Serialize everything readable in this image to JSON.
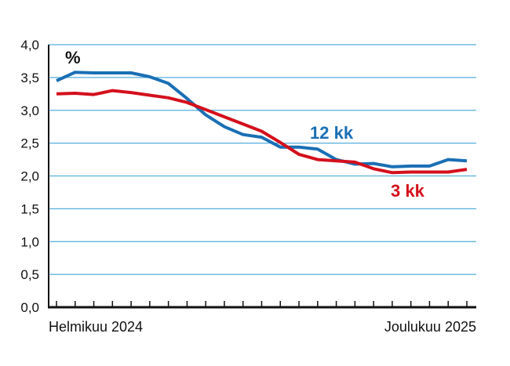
{
  "chart_data": {
    "type": "line",
    "unit_label": "%",
    "ylim": [
      0,
      4
    ],
    "y_ticks": [
      "0,0",
      "0,5",
      "1,0",
      "1,5",
      "2,0",
      "2,5",
      "3,0",
      "3,5",
      "4,0"
    ],
    "y_tick_values": [
      0,
      0.5,
      1,
      1.5,
      2,
      2.5,
      3,
      3.5,
      4
    ],
    "x_start_label": "Helmikuu 2024",
    "x_end_label": "Joulukuu 2025",
    "x_count": 23,
    "grid": true,
    "series": [
      {
        "name": "12 kk",
        "color": "#1a6fb5",
        "values": [
          3.45,
          3.58,
          3.57,
          3.57,
          3.57,
          3.51,
          3.41,
          3.18,
          2.93,
          2.75,
          2.63,
          2.59,
          2.44,
          2.44,
          2.41,
          2.25,
          2.18,
          2.19,
          2.14,
          2.15,
          2.15,
          2.25,
          2.23
        ]
      },
      {
        "name": "3 kk",
        "color": "#d4101c",
        "values": [
          3.25,
          3.26,
          3.24,
          3.3,
          3.27,
          3.23,
          3.19,
          3.12,
          3.01,
          2.9,
          2.79,
          2.68,
          2.51,
          2.33,
          2.25,
          2.23,
          2.21,
          2.11,
          2.05,
          2.06,
          2.06,
          2.06,
          2.1
        ]
      }
    ]
  }
}
